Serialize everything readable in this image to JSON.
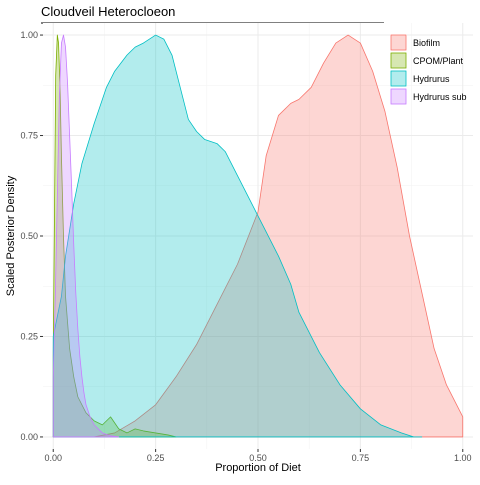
{
  "chart_data": {
    "type": "area",
    "title": "Cloudveil Heterocloeon",
    "xlabel": "Proportion of Diet",
    "ylabel": "Scaled Posterior Density",
    "xlim": [
      -0.025,
      1.025
    ],
    "ylim": [
      -0.03,
      1.03
    ],
    "x_ticks": [
      0.0,
      0.25,
      0.5,
      0.75,
      1.0
    ],
    "x_tick_labels": [
      "0.00",
      "0.25",
      "0.50",
      "0.75",
      "1.00"
    ],
    "y_ticks": [
      0.0,
      0.25,
      0.5,
      0.75,
      1.0
    ],
    "y_tick_labels": [
      "0.00",
      "0.25",
      "0.50",
      "0.75",
      "1.00"
    ],
    "grid": true,
    "legend_position": "top-right",
    "series": [
      {
        "name": "Biofilm",
        "fill": "#F8766D",
        "x": [
          0.0,
          0.05,
          0.1,
          0.15,
          0.2,
          0.25,
          0.3,
          0.35,
          0.4,
          0.45,
          0.5,
          0.52,
          0.55,
          0.58,
          0.6,
          0.63,
          0.66,
          0.69,
          0.72,
          0.75,
          0.78,
          0.81,
          0.84,
          0.87,
          0.9,
          0.93,
          0.96,
          1.0
        ],
        "y": [
          0.0,
          0.0,
          0.0,
          0.01,
          0.04,
          0.08,
          0.15,
          0.23,
          0.33,
          0.43,
          0.56,
          0.7,
          0.8,
          0.83,
          0.84,
          0.87,
          0.93,
          0.98,
          1.0,
          0.98,
          0.91,
          0.81,
          0.67,
          0.5,
          0.36,
          0.22,
          0.13,
          0.05
        ]
      },
      {
        "name": "CPOM/Plant",
        "fill": "#7CAE00",
        "x": [
          0.0,
          0.003,
          0.006,
          0.01,
          0.013,
          0.017,
          0.02,
          0.025,
          0.03,
          0.04,
          0.05,
          0.06,
          0.08,
          0.1,
          0.12,
          0.14,
          0.16,
          0.18,
          0.2,
          0.22,
          0.25,
          0.28,
          0.3
        ],
        "y": [
          0.2,
          0.55,
          0.9,
          1.0,
          0.98,
          0.85,
          0.7,
          0.5,
          0.35,
          0.22,
          0.15,
          0.1,
          0.06,
          0.04,
          0.03,
          0.05,
          0.02,
          0.01,
          0.02,
          0.015,
          0.01,
          0.005,
          0.0
        ]
      },
      {
        "name": "Hydrurus",
        "fill": "#00BFC4",
        "x": [
          0.0,
          0.01,
          0.02,
          0.03,
          0.05,
          0.07,
          0.1,
          0.13,
          0.15,
          0.18,
          0.2,
          0.22,
          0.25,
          0.27,
          0.29,
          0.31,
          0.33,
          0.35,
          0.37,
          0.4,
          0.42,
          0.45,
          0.48,
          0.5,
          0.52,
          0.55,
          0.58,
          0.6,
          0.65,
          0.7,
          0.75,
          0.8,
          0.85,
          0.88,
          0.9
        ],
        "y": [
          0.25,
          0.3,
          0.35,
          0.45,
          0.58,
          0.68,
          0.78,
          0.87,
          0.91,
          0.95,
          0.97,
          0.98,
          1.0,
          0.99,
          0.95,
          0.87,
          0.79,
          0.76,
          0.74,
          0.73,
          0.71,
          0.65,
          0.59,
          0.55,
          0.51,
          0.45,
          0.38,
          0.31,
          0.21,
          0.13,
          0.07,
          0.03,
          0.01,
          0.0,
          0.0
        ]
      },
      {
        "name": "Hydrurus sub",
        "fill": "#C77CFF",
        "x": [
          0.0,
          0.005,
          0.01,
          0.015,
          0.02,
          0.025,
          0.03,
          0.035,
          0.04,
          0.045,
          0.05,
          0.055,
          0.06,
          0.065,
          0.07,
          0.075,
          0.08,
          0.09,
          0.1,
          0.11,
          0.12,
          0.13,
          0.14,
          0.16
        ],
        "y": [
          0.15,
          0.35,
          0.6,
          0.85,
          0.98,
          1.0,
          0.97,
          0.88,
          0.75,
          0.62,
          0.48,
          0.36,
          0.27,
          0.2,
          0.15,
          0.11,
          0.08,
          0.05,
          0.03,
          0.02,
          0.01,
          0.006,
          0.003,
          0.0
        ]
      }
    ]
  }
}
